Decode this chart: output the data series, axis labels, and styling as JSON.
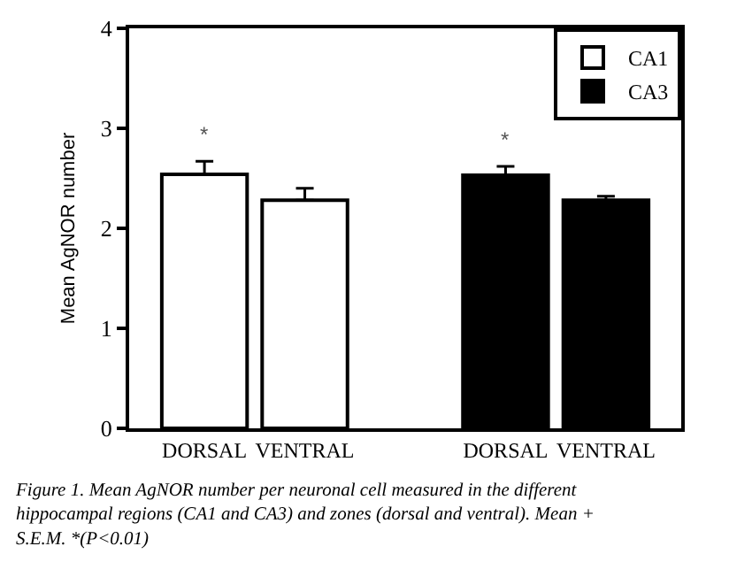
{
  "chart_data": {
    "type": "bar",
    "ylabel": "Mean AgNOR number",
    "categories": [
      "DORSAL",
      "VENTRAL",
      null,
      "DORSAL",
      "VENTRAL"
    ],
    "series": [
      {
        "name": "CA1",
        "color": "#ffffff",
        "values": [
          2.54,
          2.28,
          null,
          null,
          null
        ],
        "errors": [
          [
            2.54,
            2.67
          ],
          [
            2.28,
            2.4
          ],
          null,
          null,
          null
        ]
      },
      {
        "name": "CA3",
        "color": "#000000",
        "values": [
          null,
          null,
          null,
          2.53,
          2.28
        ],
        "errors": [
          null,
          null,
          null,
          [
            2.53,
            2.62
          ],
          [
            2.28,
            2.32
          ]
        ]
      }
    ],
    "ylim": [
      0,
      4
    ],
    "yticks": [
      0,
      1,
      2,
      3,
      4
    ],
    "grid": false,
    "legend": "top right",
    "annotations": [
      "*",
      "*",
      "Figure 1. Mean AgNOR number per neuronal cell measured in the different hippocampal regions (CA1 and CA3) and zones (dorsal and ventral). Mean + S.E.M. *(P<0.01)"
    ]
  }
}
